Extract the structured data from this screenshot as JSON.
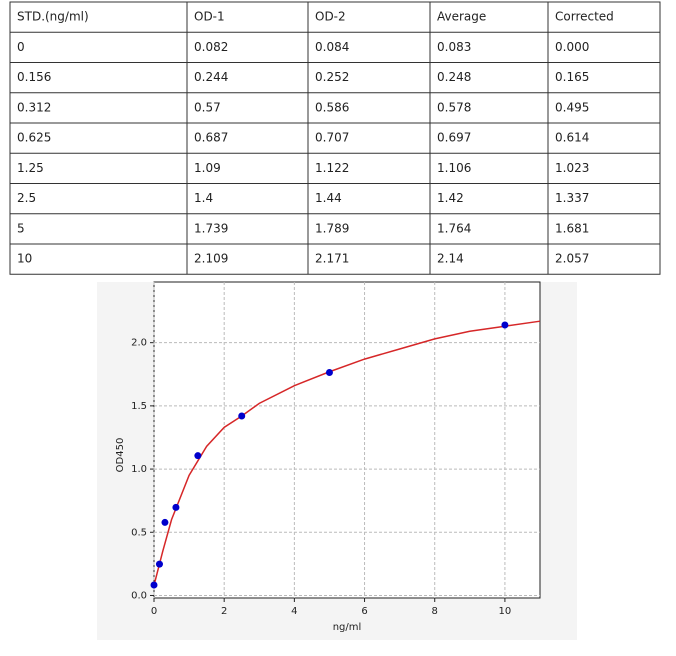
{
  "table": {
    "header": [
      "STD.(ng/ml)",
      "OD-1",
      "OD-2",
      "Average",
      "Corrected"
    ],
    "rows": [
      [
        "0",
        "0.082",
        "0.084",
        "0.083",
        "0.000"
      ],
      [
        "0.156",
        "0.244",
        "0.252",
        "0.248",
        "0.165"
      ],
      [
        "0.312",
        "0.57",
        "0.586",
        "0.578",
        "0.495"
      ],
      [
        "0.625",
        "0.687",
        "0.707",
        "0.697",
        "0.614"
      ],
      [
        "1.25",
        "1.09",
        "1.122",
        "1.106",
        "1.023"
      ],
      [
        "2.5",
        "1.4",
        "1.44",
        "1.42",
        "1.337"
      ],
      [
        "5",
        "1.739",
        "1.789",
        "1.764",
        "1.681"
      ],
      [
        "10",
        "2.109",
        "2.171",
        "2.14",
        "2.057"
      ]
    ]
  },
  "chart_data": {
    "type": "scatter",
    "x_label": "ng/ml",
    "y_label": "OD450",
    "series": [
      {
        "color": "#0000cc",
        "x": [
          0,
          0.156,
          0.312,
          0.625,
          1.25,
          2.5,
          5,
          10
        ],
        "values": [
          0.083,
          0.248,
          0.578,
          0.697,
          1.106,
          1.42,
          1.764,
          2.14
        ]
      },
      {
        "color": "#d62728",
        "x": [
          0,
          0.25,
          0.5,
          1,
          1.5,
          2,
          2.5,
          3,
          4,
          5,
          6,
          7,
          8,
          9,
          10,
          11
        ],
        "values": [
          0.08,
          0.35,
          0.6,
          0.95,
          1.18,
          1.33,
          1.42,
          1.52,
          1.66,
          1.77,
          1.87,
          1.95,
          2.03,
          2.09,
          2.13,
          2.17
        ]
      }
    ],
    "xlim": [
      0,
      11
    ],
    "ylim": [
      -0.02,
      2.48
    ],
    "xticks": [
      0,
      2,
      4,
      6,
      8,
      10
    ],
    "yticks": [
      {
        "value": 0,
        "label": "0.0"
      },
      0.5,
      {
        "value": 1,
        "label": "1.0"
      },
      1.5,
      {
        "value": 2,
        "label": "2.0"
      }
    ],
    "grid": true
  }
}
